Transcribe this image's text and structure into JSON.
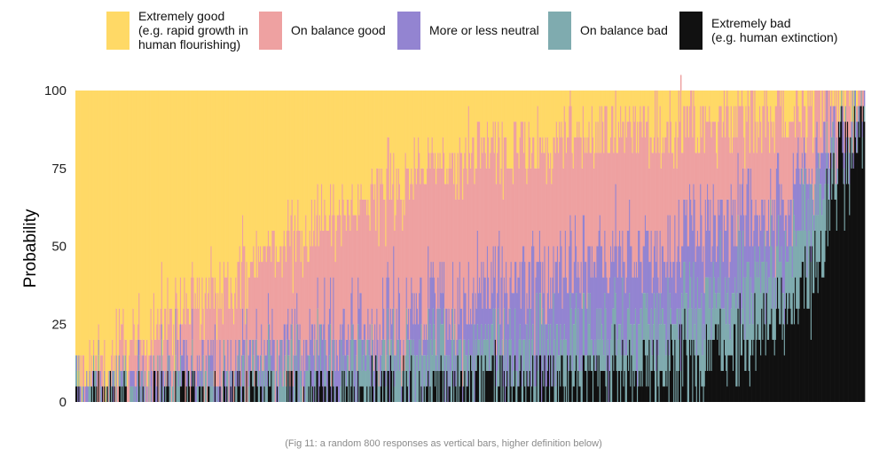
{
  "chart_data": {
    "type": "bar",
    "stacked": true,
    "orientation": "vertical",
    "n_bars": 800,
    "sorted_by": "Extremely good (ascending), then Extremely bad",
    "ylabel": "Probability",
    "ylim": [
      0,
      100
    ],
    "yticks": [
      0,
      25,
      50,
      75,
      100
    ],
    "grid": false,
    "legend_position": "top",
    "series": [
      {
        "key": "extremely_good",
        "name": "Extremely good\n(e.g. rapid growth in\nhuman flourishing)",
        "color": "#FFD966",
        "profile_x": [
          0,
          0.05,
          0.15,
          0.3,
          0.45,
          0.7,
          0.9,
          1.0
        ],
        "profile_values": [
          100,
          95,
          70,
          40,
          20,
          10,
          5,
          0
        ]
      },
      {
        "key": "on_balance_good",
        "name": "On balance good",
        "color": "#EEA1A1",
        "profile_x": [
          0,
          0.1,
          0.3,
          0.5,
          0.75,
          0.9,
          1.0
        ],
        "profile_values": [
          0,
          15,
          35,
          40,
          30,
          20,
          0
        ]
      },
      {
        "key": "neutral",
        "name": "More or less neutral",
        "color": "#9384D1",
        "profile_x": [
          0,
          0.15,
          0.4,
          0.6,
          0.8,
          0.95,
          1.0
        ],
        "profile_values": [
          0,
          5,
          10,
          20,
          20,
          10,
          0
        ]
      },
      {
        "key": "on_balance_bad",
        "name": "On balance bad",
        "color": "#7FABAF",
        "profile_x": [
          0,
          0.2,
          0.4,
          0.6,
          0.8,
          0.95,
          1.0
        ],
        "profile_values": [
          0,
          5,
          10,
          10,
          15,
          15,
          0
        ]
      },
      {
        "key": "extremely_bad",
        "name": "Extremely bad\n(e.g. human extinction)",
        "color": "#111111",
        "profile_x": [
          0,
          0.4,
          0.6,
          0.8,
          0.9,
          0.95,
          1.0
        ],
        "profile_values": [
          0,
          2,
          5,
          10,
          20,
          35,
          100
        ]
      }
    ]
  },
  "caption": "(Fig 11: a random 800 responses as vertical bars, higher definition below)"
}
